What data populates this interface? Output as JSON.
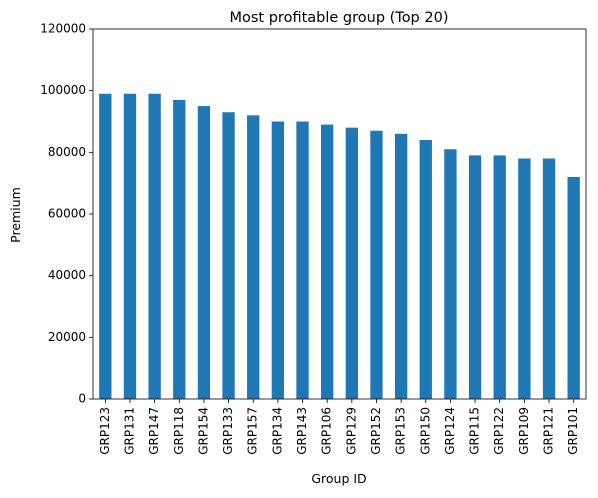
{
  "chart_data": {
    "type": "bar",
    "title": "Most profitable group (Top 20)",
    "xlabel": "Group ID",
    "ylabel": "Premium",
    "categories": [
      "GRP123",
      "GRP131",
      "GRP147",
      "GRP118",
      "GRP154",
      "GRP133",
      "GRP157",
      "GRP134",
      "GRP143",
      "GRP106",
      "GRP129",
      "GRP152",
      "GRP153",
      "GRP150",
      "GRP124",
      "GRP115",
      "GRP122",
      "GRP109",
      "GRP121",
      "GRP101"
    ],
    "values": [
      99000,
      99000,
      99000,
      97000,
      95000,
      93000,
      92000,
      90000,
      90000,
      89000,
      88000,
      87000,
      86000,
      84000,
      81000,
      79000,
      79000,
      78000,
      78000,
      72000
    ],
    "ylim": [
      0,
      120000
    ],
    "yticks": [
      "0",
      "20000",
      "40000",
      "60000",
      "80000",
      "100000",
      "120000"
    ],
    "grid": false,
    "legend": "none",
    "bar_color": "#1f77b4"
  }
}
